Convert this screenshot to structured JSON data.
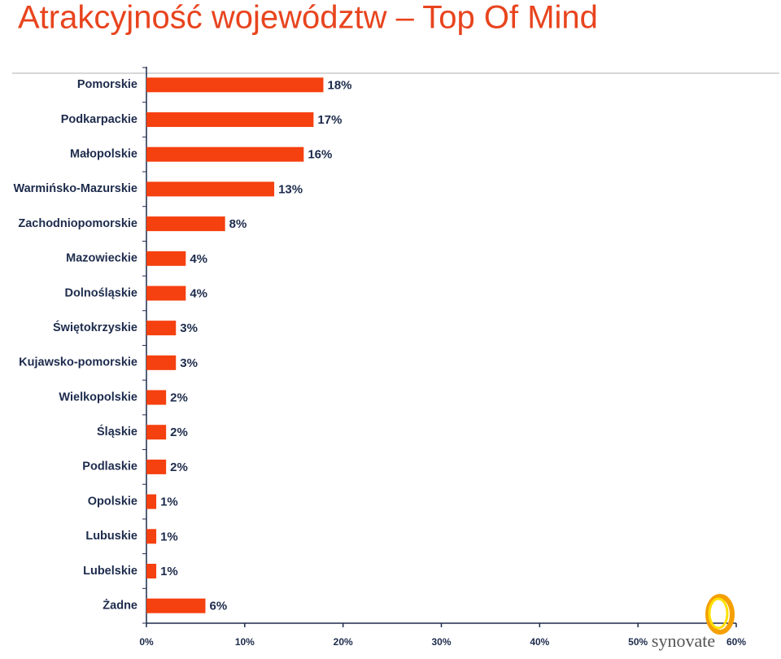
{
  "chart_data": {
    "type": "bar",
    "orientation": "horizontal",
    "title": "Atrakcyjność województw – Top Of Mind",
    "categories": [
      "Pomorskie",
      "Podkarpackie",
      "Małopolskie",
      "Warmińsko-Mazurskie",
      "Zachodniopomorskie",
      "Mazowieckie",
      "Dolnośląskie",
      "Świętokrzyskie",
      "Kujawsko-pomorskie",
      "Wielkopolskie",
      "Śląskie",
      "Podlaskie",
      "Opolskie",
      "Lubuskie",
      "Lubelskie",
      "Żadne"
    ],
    "values": [
      18,
      17,
      16,
      13,
      8,
      4,
      4,
      3,
      3,
      2,
      2,
      2,
      1,
      1,
      1,
      6
    ],
    "value_labels": [
      "18%",
      "17%",
      "16%",
      "13%",
      "8%",
      "4%",
      "4%",
      "3%",
      "3%",
      "2%",
      "2%",
      "2%",
      "1%",
      "1%",
      "1%",
      "6%"
    ],
    "color": "#f5400f",
    "xlim": [
      0,
      60
    ],
    "xticks": [
      {
        "value": 0,
        "label": "0%"
      },
      {
        "value": 10,
        "label": "10%"
      },
      {
        "value": 20,
        "label": "20%"
      },
      {
        "value": 30,
        "label": "30%"
      },
      {
        "value": 40,
        "label": "40%"
      },
      {
        "value": 50,
        "label": "50%"
      },
      {
        "value": 60,
        "label": "60%"
      }
    ]
  },
  "logo": "synovate"
}
